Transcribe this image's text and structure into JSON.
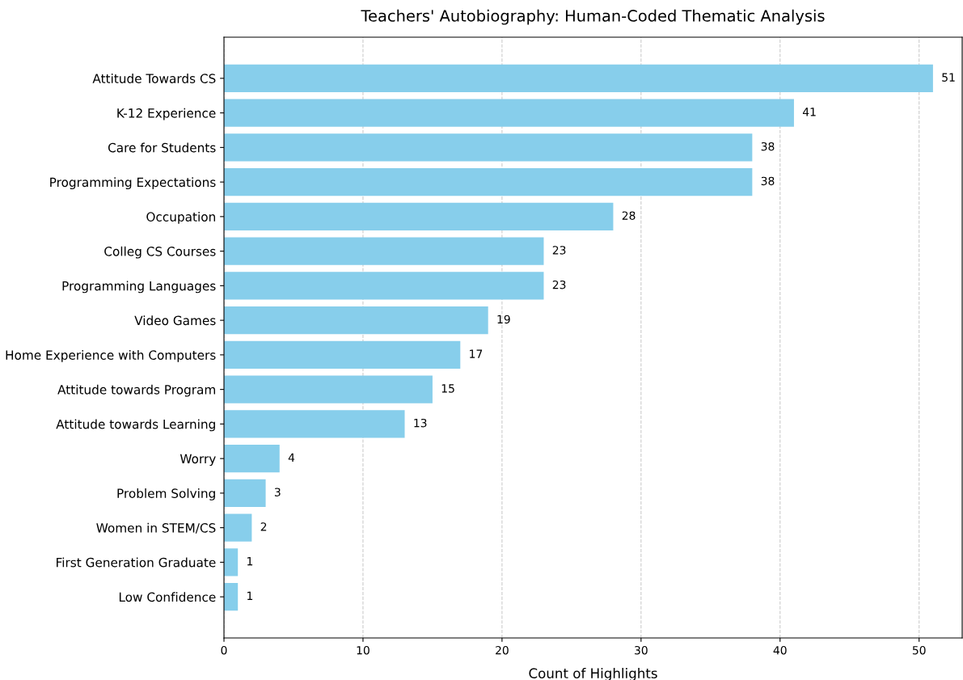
{
  "chart_data": {
    "type": "bar",
    "orientation": "horizontal",
    "title": "Teachers' Autobiography: Human-Coded Thematic Analysis",
    "xlabel": "Count of Highlights",
    "categories": [
      "Attitude Towards CS",
      "K-12 Experience",
      "Care for Students",
      "Programming Expectations",
      "Occupation",
      "Colleg CS Courses",
      "Programming Languages",
      "Video Games",
      "Home Experience with Computers",
      "Attitude towards Program",
      "Attitude towards Learning",
      "Worry",
      "Problem Solving",
      "Women in STEM/CS",
      "First Generation Graduate",
      "Low Confidence"
    ],
    "values": [
      51,
      41,
      38,
      38,
      28,
      23,
      23,
      19,
      17,
      15,
      13,
      4,
      3,
      2,
      1,
      1
    ],
    "color": "#87ceeb",
    "xlim": [
      0,
      53.1
    ],
    "xticks": [
      0,
      10,
      20,
      30,
      40,
      50
    ],
    "grid": "x",
    "data_labels": true
  }
}
